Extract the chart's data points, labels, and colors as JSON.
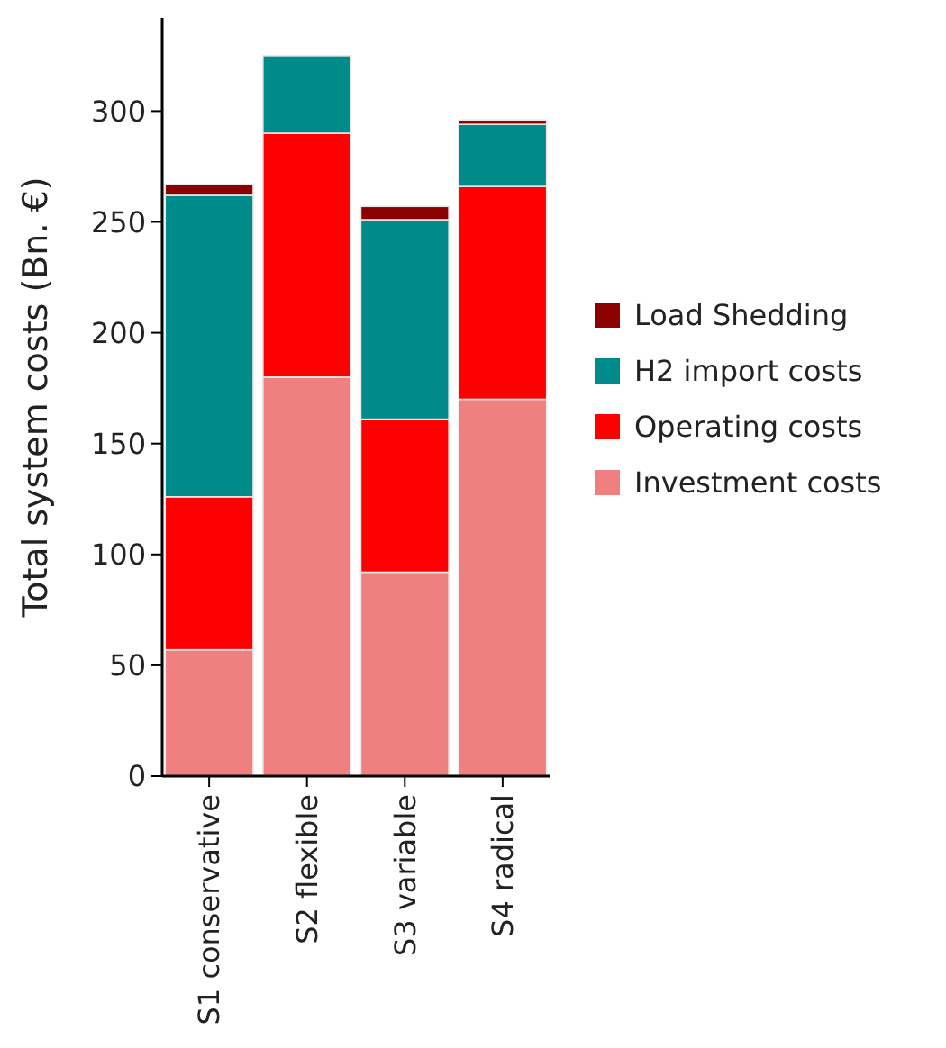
{
  "chart_data": {
    "type": "bar",
    "stacked": true,
    "ylabel": "Total system costs (Bn. €)",
    "categories": [
      "S1 conservative",
      "S2 flexible",
      "S3 variable",
      "S4 radical"
    ],
    "series": [
      {
        "name": "Investment costs",
        "color": "#f08080",
        "values": [
          57,
          180,
          92,
          170
        ]
      },
      {
        "name": "Operating costs",
        "color": "#ff0000",
        "values": [
          69,
          110,
          69,
          96
        ]
      },
      {
        "name": "H2 import costs",
        "color": "#008b8b",
        "values": [
          136,
          35,
          90,
          28
        ]
      },
      {
        "name": "Load Shedding",
        "color": "#8b0000",
        "values": [
          5,
          0,
          6,
          2
        ]
      }
    ],
    "ylim": [
      0,
      342
    ],
    "yticks": [
      0,
      50,
      100,
      150,
      200,
      250,
      300
    ],
    "legend": "right",
    "grid": false
  }
}
